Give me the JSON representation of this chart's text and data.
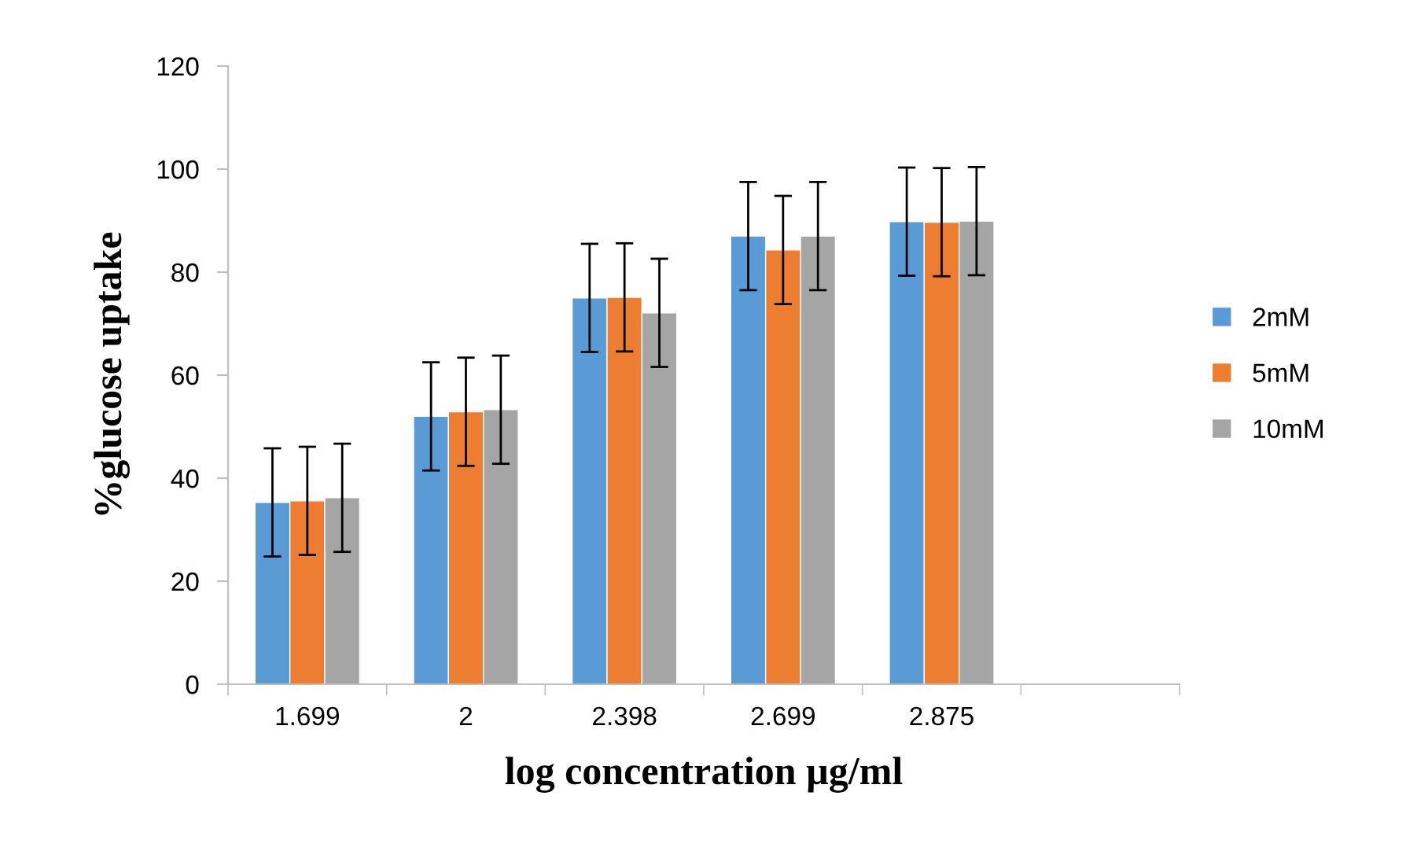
{
  "chart_data": {
    "type": "bar",
    "xlabel": "log concentration µg/ml",
    "ylabel": "%glucose uptake",
    "categories": [
      "1.699",
      "2",
      "2.398",
      "2.699",
      "2.875",
      null
    ],
    "series": [
      {
        "name": "2mM",
        "color": "#5b9bd5",
        "values": [
          35.3,
          52.0,
          75.0,
          87.0,
          89.8,
          null
        ],
        "errors": [
          10.5,
          10.5,
          10.5,
          10.5,
          10.5,
          null
        ]
      },
      {
        "name": "5mM",
        "color": "#ed7d31",
        "values": [
          35.6,
          52.9,
          75.1,
          84.3,
          89.7,
          null
        ],
        "errors": [
          10.5,
          10.5,
          10.5,
          10.5,
          10.5,
          null
        ]
      },
      {
        "name": "10mM",
        "color": "#a5a5a5",
        "values": [
          36.2,
          53.3,
          72.1,
          87.0,
          89.9,
          null
        ],
        "errors": [
          10.5,
          10.5,
          10.5,
          10.5,
          10.5,
          null
        ]
      }
    ],
    "ylim": [
      0,
      120
    ],
    "yticks": [
      0,
      20,
      40,
      60,
      80,
      100,
      120
    ],
    "grid": false,
    "legend": "right"
  }
}
